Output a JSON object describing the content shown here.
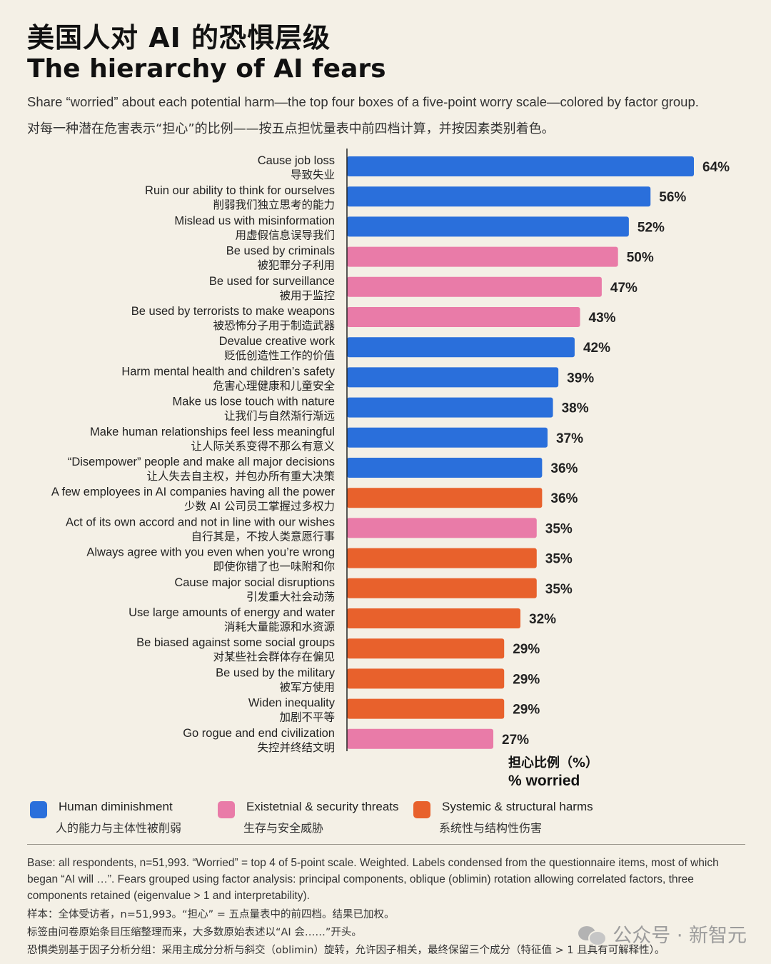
{
  "header": {
    "title_zh": "美国人对 AI 的恐惧层级",
    "title_en": "The hierarchy of AI fears",
    "subtitle_en": "Share “worried” about each potential harm—the top four boxes of a five-point worry scale—colored by factor group.",
    "subtitle_zh": "对每一种潜在危害表示“担心”的比例——按五点担忧量表中前四档计算，并按因素类别着色。"
  },
  "colors": {
    "human": "#2A6FDB",
    "existential": "#E97BA8",
    "systemic": "#E8612C"
  },
  "chart_data": {
    "type": "bar",
    "orientation": "horizontal",
    "xlabel_zh": "担心比例（%）",
    "xlabel_en": "% worried",
    "xlim": [
      0,
      64
    ],
    "grid": false,
    "legend": "bottom",
    "categories": [
      {
        "en": "Cause job loss",
        "zh": "导致失业"
      },
      {
        "en": "Ruin our ability to think for ourselves",
        "zh": "削弱我们独立思考的能力"
      },
      {
        "en": "Mislead us with misinformation",
        "zh": "用虚假信息误导我们"
      },
      {
        "en": "Be used by criminals",
        "zh": "被犯罪分子利用"
      },
      {
        "en": "Be used for surveillance",
        "zh": "被用于监控"
      },
      {
        "en": "Be used by terrorists to make weapons",
        "zh": "被恐怖分子用于制造武器"
      },
      {
        "en": "Devalue creative work",
        "zh": "贬低创造性工作的价值"
      },
      {
        "en": "Harm mental health and children’s safety",
        "zh": "危害心理健康和儿童安全"
      },
      {
        "en": "Make us lose touch with nature",
        "zh": "让我们与自然渐行渐远"
      },
      {
        "en": "Make human relationships feel less meaningful",
        "zh": "让人际关系变得不那么有意义"
      },
      {
        "en": "“Disempower” people and make all major decisions",
        "zh": "让人失去自主权，并包办所有重大决策"
      },
      {
        "en": "A few employees in AI companies having all the power",
        "zh": "少数 AI 公司员工掌握过多权力"
      },
      {
        "en": "Act of its own accord and not in line with our wishes",
        "zh": "自行其是，不按人类意愿行事"
      },
      {
        "en": "Always agree with you even when you’re wrong",
        "zh": "即使你错了也一味附和你"
      },
      {
        "en": "Cause major social disruptions",
        "zh": "引发重大社会动荡"
      },
      {
        "en": "Use large amounts of energy and water",
        "zh": "消耗大量能源和水资源"
      },
      {
        "en": "Be biased against some social groups",
        "zh": "对某些社会群体存在偏见"
      },
      {
        "en": "Be used by the military",
        "zh": "被军方使用"
      },
      {
        "en": "Widen inequality",
        "zh": "加剧不平等"
      },
      {
        "en": "Go rogue and end civilization",
        "zh": "失控并终结文明"
      }
    ],
    "values": [
      64,
      56,
      52,
      50,
      47,
      43,
      42,
      39,
      38,
      37,
      36,
      36,
      35,
      35,
      35,
      32,
      29,
      29,
      29,
      27
    ],
    "value_labels": [
      "64%",
      "56%",
      "52%",
      "50%",
      "47%",
      "43%",
      "42%",
      "39%",
      "38%",
      "37%",
      "36%",
      "36%",
      "35%",
      "35%",
      "35%",
      "32%",
      "29%",
      "29%",
      "29%",
      "27%"
    ],
    "groups": [
      "human",
      "human",
      "human",
      "existential",
      "existential",
      "existential",
      "human",
      "human",
      "human",
      "human",
      "human",
      "systemic",
      "existential",
      "systemic",
      "systemic",
      "systemic",
      "systemic",
      "systemic",
      "systemic",
      "existential"
    ]
  },
  "legend": [
    {
      "key": "human",
      "en": "Human diminishment",
      "zh": "人的能力与主体性被削弱"
    },
    {
      "key": "existential",
      "en": "Existetnial & security threats",
      "zh": "生存与安全威胁"
    },
    {
      "key": "systemic",
      "en": "Systemic & structural harms",
      "zh": "系统性与结构性伤害"
    }
  ],
  "notes": {
    "en": "Base: all respondents, n=51,993. “Worried” = top 4 of 5-point scale. Weighted. Labels condensed from the questionnaire items, most of which began “AI will …”. Fears grouped using factor analysis: principal components, oblique (oblimin) rotation allowing correlated factors, three components retained (eigenvalue > 1 and interpretability).",
    "zh_1": "样本：全体受访者，n=51,993。“担心” = 五点量表中的前四档。结果已加权。",
    "zh_2": "标签由问卷原始条目压缩整理而来，大多数原始表述以“AI 会……”开头。",
    "zh_3": "恐惧类别基于因子分析分组：采用主成分分析与斜交（oblimin）旋转，允许因子相关，最终保留三个成分（特征值 > 1 且具有可解释性）。"
  },
  "watermark": "公众号 · 新智元"
}
